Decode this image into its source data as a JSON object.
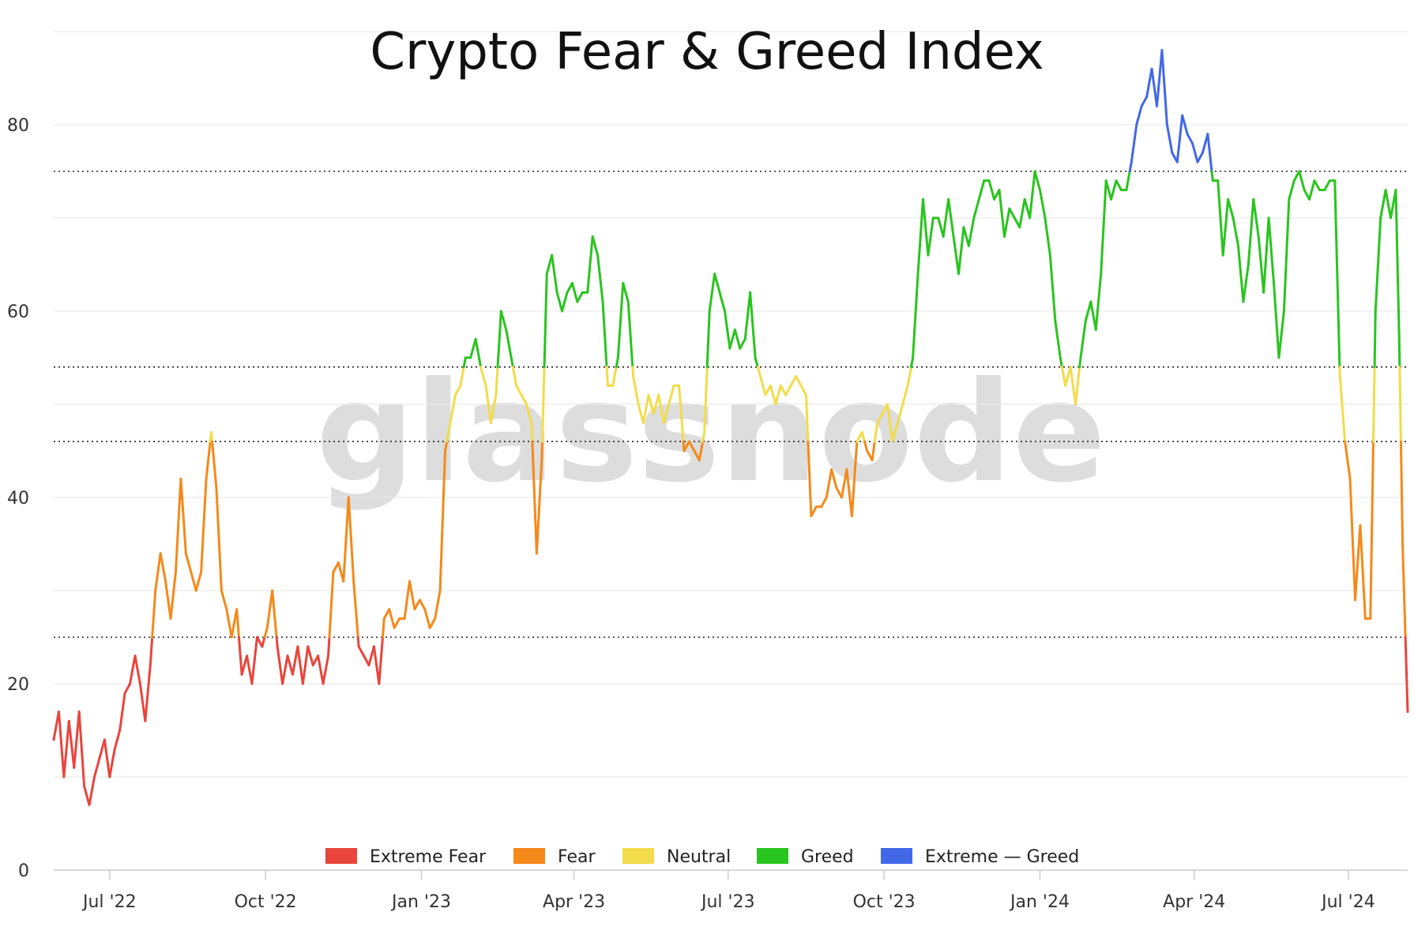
{
  "chart_data": {
    "type": "line",
    "title": "Crypto Fear & Greed Index",
    "watermark": "glassnode",
    "xlabel": "",
    "ylabel": "",
    "ylim": [
      0,
      90
    ],
    "y_ticks": [
      0,
      20,
      40,
      60,
      80
    ],
    "x_ticks": [
      {
        "label": "Jul '22",
        "date": "2022-07-01"
      },
      {
        "label": "Oct '22",
        "date": "2022-10-01"
      },
      {
        "label": "Jan '23",
        "date": "2023-01-01"
      },
      {
        "label": "Apr '23",
        "date": "2023-04-01"
      },
      {
        "label": "Jul '23",
        "date": "2023-07-01"
      },
      {
        "label": "Oct '23",
        "date": "2023-10-01"
      },
      {
        "label": "Jan '24",
        "date": "2024-01-01"
      },
      {
        "label": "Apr '24",
        "date": "2024-04-01"
      },
      {
        "label": "Jul '24",
        "date": "2024-07-01"
      }
    ],
    "xlim": [
      "2022-05-29",
      "2024-08-05"
    ],
    "thresholds": [
      25,
      46,
      54,
      75
    ],
    "grid": true,
    "legend_position": "bottom",
    "legend": [
      {
        "label": "Extreme Fear",
        "color": "#e8453c"
      },
      {
        "label": "Fear",
        "color": "#f5891a"
      },
      {
        "label": "Neutral",
        "color": "#f2dc4b"
      },
      {
        "label": "Greed",
        "color": "#2ac41f"
      },
      {
        "label": "Extreme — Greed",
        "color": "#4268e8"
      }
    ],
    "series": [
      {
        "points": [
          [
            "2022-05-29",
            14
          ],
          [
            "2022-06-01",
            17
          ],
          [
            "2022-06-04",
            10
          ],
          [
            "2022-06-07",
            16
          ],
          [
            "2022-06-10",
            11
          ],
          [
            "2022-06-13",
            17
          ],
          [
            "2022-06-16",
            9
          ],
          [
            "2022-06-19",
            7
          ],
          [
            "2022-06-22",
            10
          ],
          [
            "2022-06-25",
            12
          ],
          [
            "2022-06-28",
            14
          ],
          [
            "2022-07-01",
            10
          ],
          [
            "2022-07-04",
            13
          ],
          [
            "2022-07-07",
            15
          ],
          [
            "2022-07-10",
            19
          ],
          [
            "2022-07-13",
            20
          ],
          [
            "2022-07-16",
            23
          ],
          [
            "2022-07-19",
            20
          ],
          [
            "2022-07-22",
            16
          ],
          [
            "2022-07-25",
            22
          ],
          [
            "2022-07-28",
            30
          ],
          [
            "2022-07-31",
            34
          ],
          [
            "2022-08-03",
            31
          ],
          [
            "2022-08-06",
            27
          ],
          [
            "2022-08-09",
            32
          ],
          [
            "2022-08-12",
            42
          ],
          [
            "2022-08-15",
            34
          ],
          [
            "2022-08-18",
            32
          ],
          [
            "2022-08-21",
            30
          ],
          [
            "2022-08-24",
            32
          ],
          [
            "2022-08-27",
            42
          ],
          [
            "2022-08-30",
            47
          ],
          [
            "2022-09-02",
            41
          ],
          [
            "2022-09-05",
            30
          ],
          [
            "2022-09-08",
            28
          ],
          [
            "2022-09-11",
            25
          ],
          [
            "2022-09-14",
            28
          ],
          [
            "2022-09-17",
            21
          ],
          [
            "2022-09-20",
            23
          ],
          [
            "2022-09-23",
            20
          ],
          [
            "2022-09-26",
            25
          ],
          [
            "2022-09-29",
            24
          ],
          [
            "2022-10-02",
            26
          ],
          [
            "2022-10-05",
            30
          ],
          [
            "2022-10-08",
            24
          ],
          [
            "2022-10-11",
            20
          ],
          [
            "2022-10-14",
            23
          ],
          [
            "2022-10-17",
            21
          ],
          [
            "2022-10-20",
            24
          ],
          [
            "2022-10-23",
            20
          ],
          [
            "2022-10-26",
            24
          ],
          [
            "2022-10-29",
            22
          ],
          [
            "2022-11-01",
            23
          ],
          [
            "2022-11-04",
            20
          ],
          [
            "2022-11-07",
            23
          ],
          [
            "2022-11-10",
            32
          ],
          [
            "2022-11-13",
            33
          ],
          [
            "2022-11-16",
            31
          ],
          [
            "2022-11-19",
            40
          ],
          [
            "2022-11-22",
            31
          ],
          [
            "2022-11-25",
            24
          ],
          [
            "2022-11-28",
            23
          ],
          [
            "2022-12-01",
            22
          ],
          [
            "2022-12-04",
            24
          ],
          [
            "2022-12-07",
            20
          ],
          [
            "2022-12-10",
            27
          ],
          [
            "2022-12-13",
            28
          ],
          [
            "2022-12-16",
            26
          ],
          [
            "2022-12-19",
            27
          ],
          [
            "2022-12-22",
            27
          ],
          [
            "2022-12-25",
            31
          ],
          [
            "2022-12-28",
            28
          ],
          [
            "2022-12-31",
            29
          ],
          [
            "2023-01-03",
            28
          ],
          [
            "2023-01-06",
            26
          ],
          [
            "2023-01-09",
            27
          ],
          [
            "2023-01-12",
            30
          ],
          [
            "2023-01-15",
            45
          ],
          [
            "2023-01-18",
            48
          ],
          [
            "2023-01-21",
            51
          ],
          [
            "2023-01-24",
            52
          ],
          [
            "2023-01-27",
            55
          ],
          [
            "2023-01-30",
            55
          ],
          [
            "2023-02-02",
            57
          ],
          [
            "2023-02-05",
            54
          ],
          [
            "2023-02-08",
            52
          ],
          [
            "2023-02-11",
            48
          ],
          [
            "2023-02-14",
            51
          ],
          [
            "2023-02-17",
            60
          ],
          [
            "2023-02-20",
            58
          ],
          [
            "2023-02-23",
            55
          ],
          [
            "2023-02-26",
            52
          ],
          [
            "2023-03-01",
            51
          ],
          [
            "2023-03-04",
            50
          ],
          [
            "2023-03-07",
            48
          ],
          [
            "2023-03-10",
            34
          ],
          [
            "2023-03-13",
            44
          ],
          [
            "2023-03-16",
            64
          ],
          [
            "2023-03-19",
            66
          ],
          [
            "2023-03-22",
            62
          ],
          [
            "2023-03-25",
            60
          ],
          [
            "2023-03-28",
            62
          ],
          [
            "2023-03-31",
            63
          ],
          [
            "2023-04-03",
            61
          ],
          [
            "2023-04-06",
            62
          ],
          [
            "2023-04-09",
            62
          ],
          [
            "2023-04-12",
            68
          ],
          [
            "2023-04-15",
            66
          ],
          [
            "2023-04-18",
            61
          ],
          [
            "2023-04-21",
            52
          ],
          [
            "2023-04-24",
            52
          ],
          [
            "2023-04-27",
            55
          ],
          [
            "2023-04-30",
            63
          ],
          [
            "2023-05-03",
            61
          ],
          [
            "2023-05-06",
            53
          ],
          [
            "2023-05-09",
            50
          ],
          [
            "2023-05-12",
            48
          ],
          [
            "2023-05-15",
            51
          ],
          [
            "2023-05-18",
            49
          ],
          [
            "2023-05-21",
            51
          ],
          [
            "2023-05-24",
            48
          ],
          [
            "2023-05-27",
            50
          ],
          [
            "2023-05-30",
            52
          ],
          [
            "2023-06-02",
            52
          ],
          [
            "2023-06-05",
            45
          ],
          [
            "2023-06-08",
            46
          ],
          [
            "2023-06-11",
            45
          ],
          [
            "2023-06-14",
            44
          ],
          [
            "2023-06-17",
            47
          ],
          [
            "2023-06-20",
            60
          ],
          [
            "2023-06-23",
            64
          ],
          [
            "2023-06-26",
            62
          ],
          [
            "2023-06-29",
            60
          ],
          [
            "2023-07-02",
            56
          ],
          [
            "2023-07-05",
            58
          ],
          [
            "2023-07-08",
            56
          ],
          [
            "2023-07-11",
            57
          ],
          [
            "2023-07-14",
            62
          ],
          [
            "2023-07-17",
            55
          ],
          [
            "2023-07-20",
            53
          ],
          [
            "2023-07-23",
            51
          ],
          [
            "2023-07-26",
            52
          ],
          [
            "2023-07-29",
            50
          ],
          [
            "2023-08-01",
            52
          ],
          [
            "2023-08-04",
            51
          ],
          [
            "2023-08-07",
            52
          ],
          [
            "2023-08-10",
            53
          ],
          [
            "2023-08-13",
            52
          ],
          [
            "2023-08-16",
            51
          ],
          [
            "2023-08-19",
            38
          ],
          [
            "2023-08-22",
            39
          ],
          [
            "2023-08-25",
            39
          ],
          [
            "2023-08-28",
            40
          ],
          [
            "2023-08-31",
            43
          ],
          [
            "2023-09-03",
            41
          ],
          [
            "2023-09-06",
            40
          ],
          [
            "2023-09-09",
            43
          ],
          [
            "2023-09-12",
            38
          ],
          [
            "2023-09-15",
            46
          ],
          [
            "2023-09-18",
            47
          ],
          [
            "2023-09-21",
            45
          ],
          [
            "2023-09-24",
            44
          ],
          [
            "2023-09-27",
            48
          ],
          [
            "2023-09-30",
            49
          ],
          [
            "2023-10-03",
            50
          ],
          [
            "2023-10-06",
            46
          ],
          [
            "2023-10-09",
            48
          ],
          [
            "2023-10-12",
            50
          ],
          [
            "2023-10-15",
            52
          ],
          [
            "2023-10-18",
            55
          ],
          [
            "2023-10-21",
            64
          ],
          [
            "2023-10-24",
            72
          ],
          [
            "2023-10-27",
            66
          ],
          [
            "2023-10-30",
            70
          ],
          [
            "2023-11-02",
            70
          ],
          [
            "2023-11-05",
            68
          ],
          [
            "2023-11-08",
            72
          ],
          [
            "2023-11-11",
            68
          ],
          [
            "2023-11-14",
            64
          ],
          [
            "2023-11-17",
            69
          ],
          [
            "2023-11-20",
            67
          ],
          [
            "2023-11-23",
            70
          ],
          [
            "2023-11-26",
            72
          ],
          [
            "2023-11-29",
            74
          ],
          [
            "2023-12-02",
            74
          ],
          [
            "2023-12-05",
            72
          ],
          [
            "2023-12-08",
            73
          ],
          [
            "2023-12-11",
            68
          ],
          [
            "2023-12-14",
            71
          ],
          [
            "2023-12-17",
            70
          ],
          [
            "2023-12-20",
            69
          ],
          [
            "2023-12-23",
            72
          ],
          [
            "2023-12-26",
            70
          ],
          [
            "2023-12-29",
            75
          ],
          [
            "2024-01-01",
            73
          ],
          [
            "2024-01-04",
            70
          ],
          [
            "2024-01-07",
            66
          ],
          [
            "2024-01-10",
            59
          ],
          [
            "2024-01-13",
            55
          ],
          [
            "2024-01-16",
            52
          ],
          [
            "2024-01-19",
            54
          ],
          [
            "2024-01-22",
            50
          ],
          [
            "2024-01-25",
            55
          ],
          [
            "2024-01-28",
            59
          ],
          [
            "2024-01-31",
            61
          ],
          [
            "2024-02-03",
            58
          ],
          [
            "2024-02-06",
            64
          ],
          [
            "2024-02-09",
            74
          ],
          [
            "2024-02-12",
            72
          ],
          [
            "2024-02-15",
            74
          ],
          [
            "2024-02-18",
            73
          ],
          [
            "2024-02-21",
            73
          ],
          [
            "2024-02-24",
            76
          ],
          [
            "2024-02-27",
            80
          ],
          [
            "2024-03-01",
            82
          ],
          [
            "2024-03-04",
            83
          ],
          [
            "2024-03-07",
            86
          ],
          [
            "2024-03-10",
            82
          ],
          [
            "2024-03-13",
            88
          ],
          [
            "2024-03-16",
            80
          ],
          [
            "2024-03-19",
            77
          ],
          [
            "2024-03-22",
            76
          ],
          [
            "2024-03-25",
            81
          ],
          [
            "2024-03-28",
            79
          ],
          [
            "2024-03-31",
            78
          ],
          [
            "2024-04-03",
            76
          ],
          [
            "2024-04-06",
            77
          ],
          [
            "2024-04-09",
            79
          ],
          [
            "2024-04-12",
            74
          ],
          [
            "2024-04-15",
            74
          ],
          [
            "2024-04-18",
            66
          ],
          [
            "2024-04-21",
            72
          ],
          [
            "2024-04-24",
            70
          ],
          [
            "2024-04-27",
            67
          ],
          [
            "2024-04-30",
            61
          ],
          [
            "2024-05-03",
            65
          ],
          [
            "2024-05-06",
            72
          ],
          [
            "2024-05-09",
            68
          ],
          [
            "2024-05-12",
            62
          ],
          [
            "2024-05-15",
            70
          ],
          [
            "2024-05-18",
            63
          ],
          [
            "2024-05-21",
            55
          ],
          [
            "2024-05-24",
            60
          ],
          [
            "2024-05-27",
            72
          ],
          [
            "2024-05-30",
            74
          ],
          [
            "2024-06-02",
            75
          ],
          [
            "2024-06-05",
            73
          ],
          [
            "2024-06-08",
            72
          ],
          [
            "2024-06-11",
            74
          ],
          [
            "2024-06-14",
            73
          ],
          [
            "2024-06-17",
            73
          ],
          [
            "2024-06-20",
            74
          ],
          [
            "2024-06-23",
            74
          ],
          [
            "2024-06-26",
            53
          ],
          [
            "2024-06-29",
            46
          ],
          [
            "2024-07-02",
            42
          ],
          [
            "2024-07-05",
            29
          ],
          [
            "2024-07-08",
            37
          ],
          [
            "2024-07-11",
            27
          ],
          [
            "2024-07-14",
            27
          ],
          [
            "2024-07-17",
            60
          ],
          [
            "2024-07-20",
            70
          ],
          [
            "2024-07-23",
            73
          ],
          [
            "2024-07-26",
            70
          ],
          [
            "2024-07-29",
            73
          ],
          [
            "2024-07-31",
            57
          ],
          [
            "2024-08-02",
            35
          ],
          [
            "2024-08-05",
            17
          ]
        ]
      }
    ]
  }
}
